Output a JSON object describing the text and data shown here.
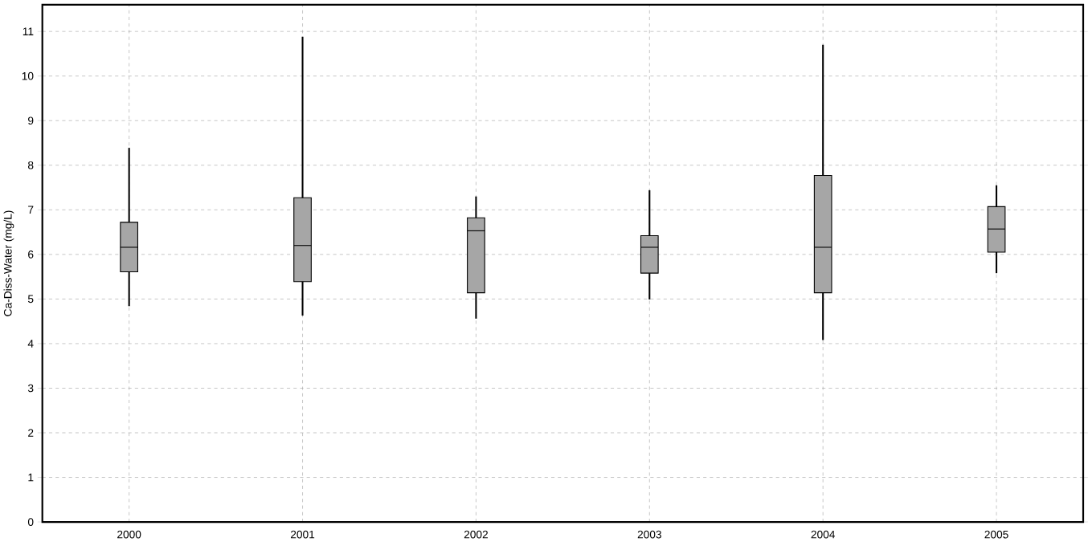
{
  "chart_data": {
    "type": "box",
    "ylabel": "Ca-Diss-Water (mg/L)",
    "categories": [
      "2000",
      "2001",
      "2002",
      "2003",
      "2004",
      "2005"
    ],
    "color": "#a6a6a6",
    "boxes": [
      {
        "low": 4.84,
        "q1": 5.61,
        "median": 6.16,
        "q3": 6.72,
        "high": 8.39
      },
      {
        "low": 4.63,
        "q1": 5.39,
        "median": 6.2,
        "q3": 7.27,
        "high": 10.88
      },
      {
        "low": 4.56,
        "q1": 5.14,
        "median": 6.53,
        "q3": 6.82,
        "high": 7.3
      },
      {
        "low": 4.99,
        "q1": 5.58,
        "median": 6.16,
        "q3": 6.42,
        "high": 7.44
      },
      {
        "low": 4.08,
        "q1": 5.14,
        "median": 6.16,
        "q3": 7.77,
        "high": 10.7
      },
      {
        "low": 5.58,
        "q1": 6.05,
        "median": 6.57,
        "q3": 7.07,
        "high": 7.55
      }
    ],
    "ylim": [
      0,
      11.6
    ],
    "yticks": [
      0,
      1,
      2,
      3,
      4,
      5,
      6,
      7,
      8,
      9,
      10,
      11
    ],
    "grid": true
  }
}
